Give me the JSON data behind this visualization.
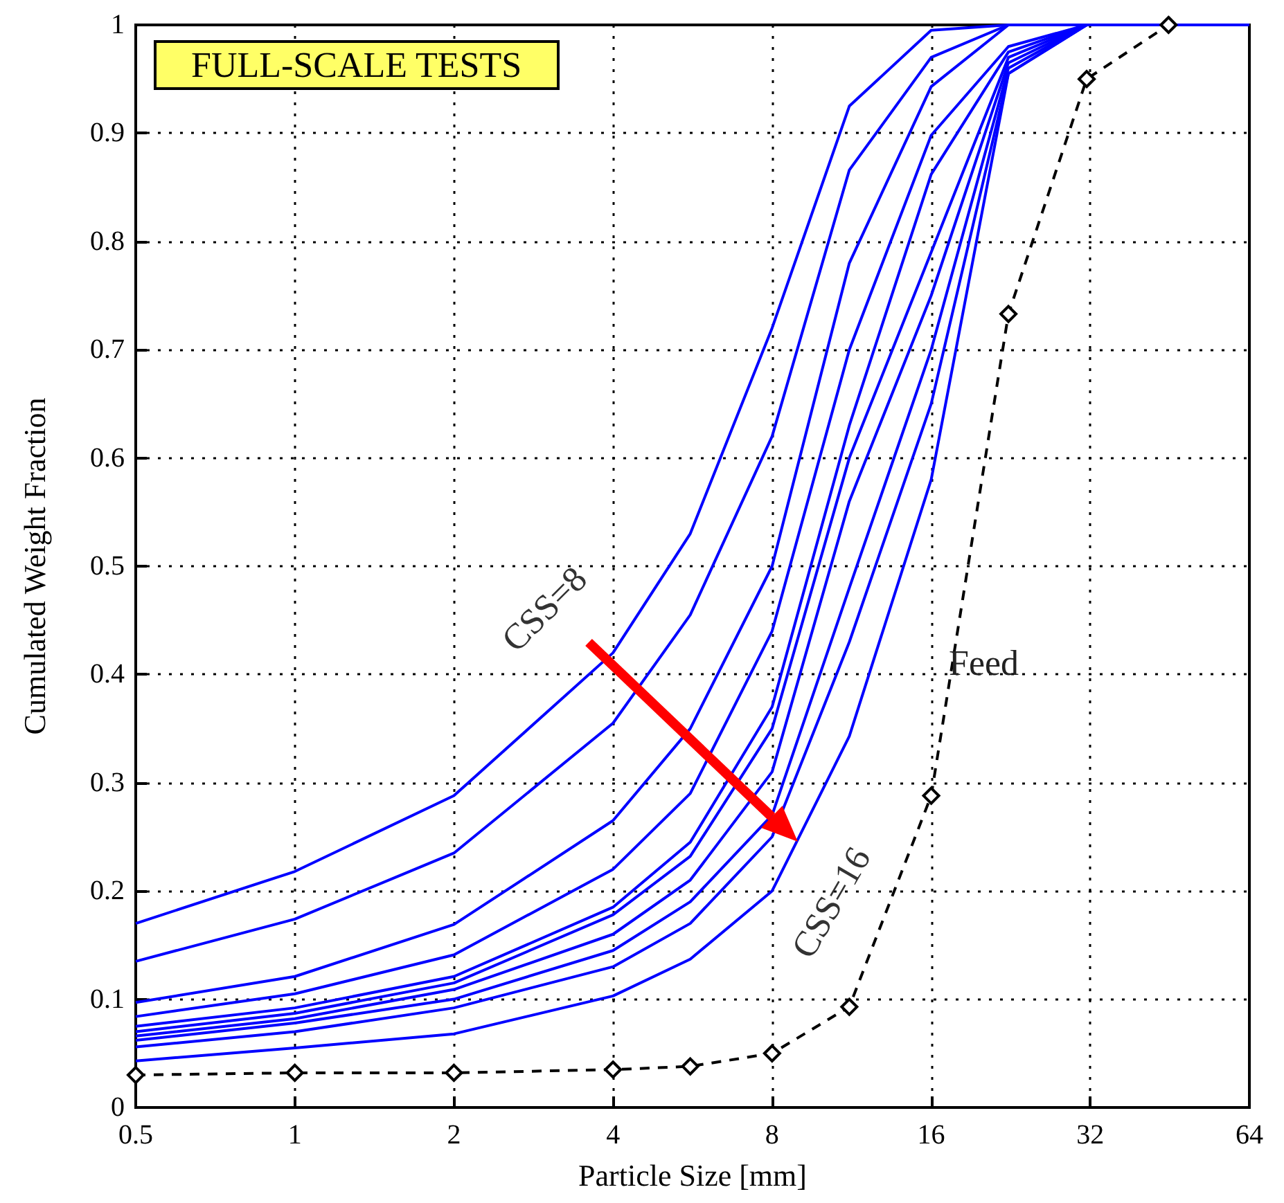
{
  "chart_data": {
    "type": "line",
    "title": "FULL-SCALE TESTS",
    "xlabel": "Particle Size [mm]",
    "ylabel": "Cumulated Weight Fraction",
    "annotations": [
      "CSS=8",
      "CSS=16"
    ],
    "x": [
      0.5,
      1,
      2,
      4,
      5.6,
      8,
      11.2,
      16,
      22.4,
      31.5,
      64
    ],
    "series": [
      {
        "color": "#0000ff",
        "values": [
          0.17,
          0.218,
          0.288,
          0.42,
          0.53,
          0.72,
          0.925,
          0.995,
          1,
          1,
          1
        ]
      },
      {
        "color": "#0000ff",
        "values": [
          0.135,
          0.174,
          0.235,
          0.355,
          0.455,
          0.62,
          0.866,
          0.97,
          1,
          1,
          null
        ]
      },
      {
        "color": "#0000ff",
        "values": [
          0.097,
          0.121,
          0.169,
          0.265,
          0.35,
          0.5,
          0.78,
          0.943,
          1,
          1,
          null
        ]
      },
      {
        "color": "#0000ff",
        "values": [
          0.084,
          0.105,
          0.141,
          0.22,
          0.29,
          0.44,
          0.7,
          0.898,
          0.98,
          1,
          null
        ]
      },
      {
        "color": "#0000ff",
        "values": [
          0.075,
          0.092,
          0.121,
          0.185,
          0.245,
          0.37,
          0.63,
          0.862,
          0.975,
          1,
          null
        ]
      },
      {
        "color": "#0000ff",
        "values": [
          0.07,
          0.087,
          0.115,
          0.178,
          0.232,
          0.35,
          0.6,
          0.79,
          0.97,
          1,
          null
        ]
      },
      {
        "color": "#0000ff",
        "values": [
          0.066,
          0.082,
          0.109,
          0.16,
          0.21,
          0.31,
          0.56,
          0.75,
          0.965,
          1,
          null
        ]
      },
      {
        "color": "#0000ff",
        "values": [
          0.062,
          0.078,
          0.1,
          0.145,
          0.19,
          0.27,
          0.48,
          0.7,
          0.96,
          1,
          null
        ]
      },
      {
        "color": "#0000ff",
        "values": [
          0.056,
          0.07,
          0.092,
          0.13,
          0.17,
          0.25,
          0.43,
          0.65,
          0.955,
          1,
          null
        ]
      },
      {
        "color": "#0000ff",
        "values": [
          0.043,
          0.055,
          0.068,
          0.103,
          0.137,
          0.2,
          0.343,
          0.58,
          0.955,
          1,
          null
        ]
      },
      {
        "name": "Feed",
        "color": "#000000",
        "marker": "diamond",
        "line_style": "dashed",
        "x": [
          0.5,
          1,
          2,
          4,
          5.6,
          8,
          11.2,
          16,
          22.4,
          31.5,
          45
        ],
        "values": [
          0.03,
          0.032,
          0.032,
          0.035,
          0.038,
          0.05,
          0.093,
          0.288,
          0.733,
          0.95,
          1
        ]
      }
    ],
    "xlim": [
      0.5,
      64
    ],
    "xticks": [
      0.5,
      1,
      2,
      4,
      8,
      16,
      32,
      64
    ],
    "ylim": [
      0,
      1
    ],
    "yticks": [
      0,
      0.1,
      0.2,
      0.3,
      0.4,
      0.5,
      0.6,
      0.7,
      0.8,
      0.9,
      1
    ],
    "log": "x",
    "grid": true,
    "marker": "none",
    "line_style": "solid"
  }
}
